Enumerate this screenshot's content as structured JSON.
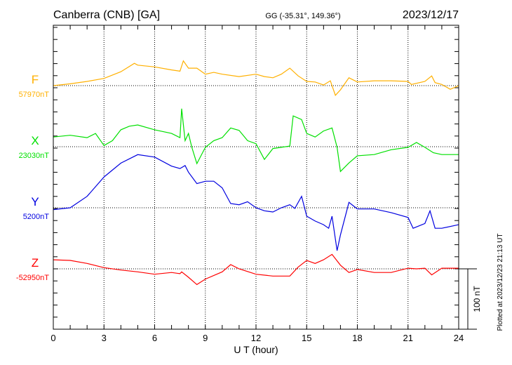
{
  "header": {
    "station": "Canberra (CNB)  [GA]",
    "coords": "GG (-35.31°, 149.36°)",
    "date": "2023/12/17"
  },
  "footer": {
    "plotted": "Plotted at 2023/12/23 21:13 UT",
    "scale_label": "100 nT"
  },
  "chart_data": {
    "type": "line",
    "title": "Canberra (CNB)  [GA]",
    "xlabel": "U T (hour)",
    "xlim": [
      0,
      24
    ],
    "xticks": [
      "0",
      "3",
      "6",
      "9",
      "12",
      "15",
      "18",
      "21",
      "24"
    ],
    "scale_nT": 100,
    "grid": true,
    "series": [
      {
        "name": "F",
        "baseline_label": "57970nT",
        "color": "#ffb000",
        "t": [
          0,
          1,
          2,
          3,
          4,
          4.8,
          5,
          6,
          7,
          7.5,
          7.7,
          8,
          8.5,
          9,
          9.5,
          10,
          11,
          12,
          12.5,
          13,
          13.5,
          14,
          14.5,
          15,
          15.5,
          16,
          16.4,
          16.7,
          17,
          17.5,
          18,
          19,
          20,
          21,
          21.2,
          22,
          22.4,
          22.6,
          23,
          23.5,
          24
        ],
        "v": [
          0,
          3,
          7,
          12,
          23,
          37,
          34,
          31,
          26,
          24,
          41,
          29,
          29,
          19,
          22,
          19,
          15,
          19,
          15,
          13,
          19,
          29,
          16,
          7,
          6,
          1,
          8,
          -16,
          -7,
          13,
          6,
          8,
          8,
          7,
          2,
          7,
          16,
          5,
          2,
          -6,
          0
        ]
      },
      {
        "name": "X",
        "baseline_label": "23030nT",
        "color": "#00e000",
        "t": [
          0,
          1,
          2,
          2.5,
          3,
          3.5,
          4,
          4.5,
          5,
          6,
          7,
          7.5,
          7.6,
          7.8,
          8,
          8.2,
          8.5,
          9,
          9.5,
          10,
          10.5,
          11,
          11.5,
          12,
          12.5,
          13,
          14,
          14.2,
          14.7,
          15,
          15.5,
          16,
          16.5,
          16.8,
          17,
          17.5,
          18,
          19,
          20,
          21,
          21.5,
          22,
          22.5,
          23,
          24
        ],
        "v": [
          16,
          19,
          15,
          22,
          2,
          10,
          28,
          34,
          36,
          28,
          22,
          15,
          63,
          10,
          22,
          -1,
          -28,
          -1,
          10,
          15,
          31,
          27,
          10,
          5,
          -21,
          -3,
          1,
          51,
          45,
          22,
          16,
          26,
          31,
          -1,
          -41,
          -27,
          -15,
          -13,
          -5,
          -1,
          7,
          -1,
          -10,
          -13,
          -13
        ]
      },
      {
        "name": "Y",
        "baseline_label": "5200nT",
        "color": "#0000e0",
        "t": [
          0,
          1,
          2,
          3,
          4,
          5,
          6,
          7,
          7.5,
          7.8,
          8,
          8.5,
          9,
          9.5,
          10,
          10.5,
          11,
          11.5,
          12,
          12.5,
          13,
          13.5,
          14,
          14.3,
          14.7,
          15,
          15.5,
          16,
          16.3,
          16.5,
          16.8,
          17,
          17.5,
          18,
          19,
          20,
          21,
          21.3,
          22,
          22.3,
          22.6,
          23,
          24
        ],
        "v": [
          -3,
          0,
          19,
          51,
          74,
          88,
          84,
          69,
          65,
          70,
          59,
          40,
          44,
          44,
          33,
          7,
          5,
          10,
          0,
          -5,
          -7,
          0,
          5,
          -1,
          19,
          -14,
          -22,
          -28,
          -34,
          -14,
          -71,
          -45,
          9,
          -2,
          -2,
          -8,
          -16,
          -34,
          -26,
          -5,
          -34,
          -34,
          -28
        ]
      },
      {
        "name": "Z",
        "baseline_label": "-52950nT",
        "color": "#ff0000",
        "t": [
          0,
          1,
          2,
          3,
          4,
          5,
          6,
          7,
          7.5,
          7.6,
          8,
          8.5,
          9,
          10,
          10.5,
          11,
          12,
          13,
          14,
          14.5,
          15,
          15.5,
          16,
          16.5,
          17,
          17.5,
          18,
          19,
          20,
          21,
          21.5,
          22,
          22.4,
          23,
          24
        ],
        "v": [
          15,
          14,
          9,
          2,
          -2,
          -5,
          -9,
          -6,
          -8,
          -5,
          -14,
          -26,
          -17,
          -5,
          7,
          0,
          -9,
          -12,
          -12,
          3,
          14,
          9,
          15,
          24,
          6,
          -6,
          -1,
          -6,
          -6,
          1,
          0,
          1,
          -10,
          1,
          1
        ]
      }
    ]
  }
}
